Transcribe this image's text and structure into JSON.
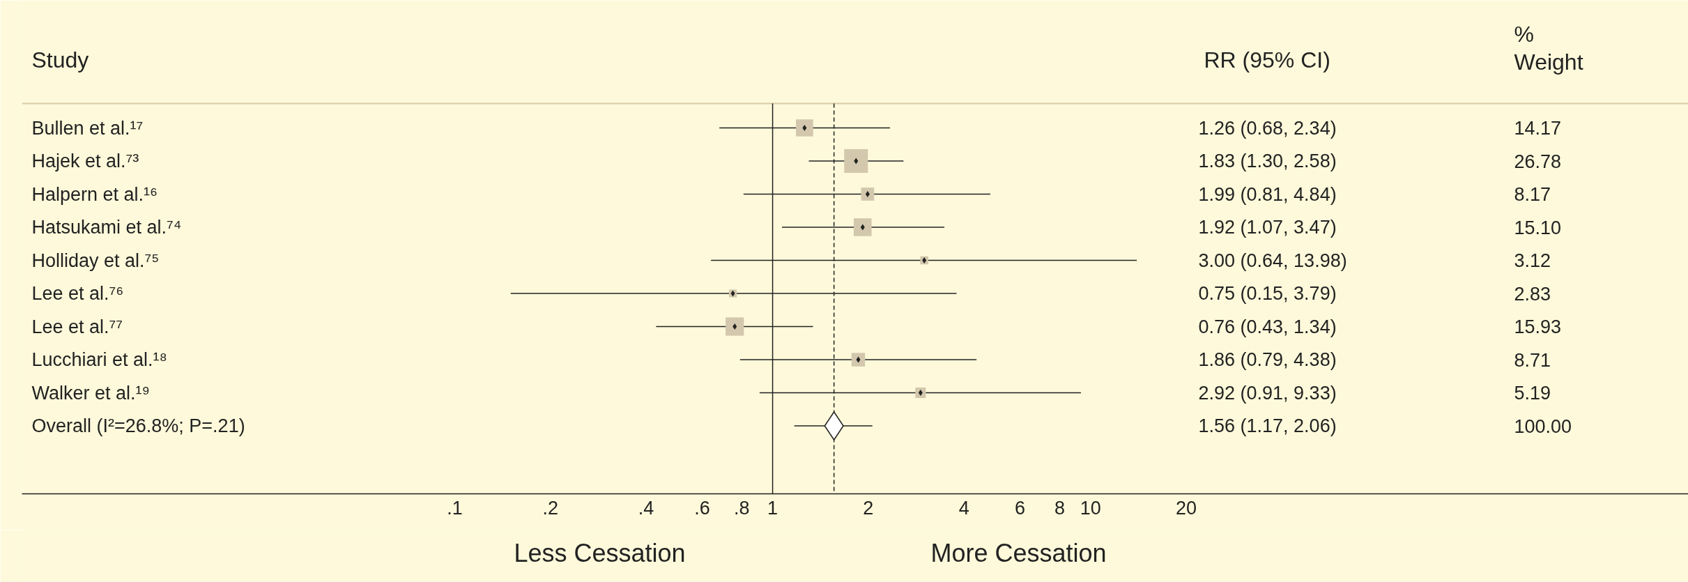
{
  "chart_data": {
    "type": "scatter",
    "orientation": "horizontal",
    "categories": [
      "Bullen et al.¹⁷",
      "Hajek et al.⁷³",
      "Halpern et al.¹⁶",
      "Hatsukami et al.⁷⁴",
      "Holliday et al.⁷⁵",
      "Lee et al.⁷⁶",
      "Lee et al.⁷⁷",
      "Lucchiari et al.¹⁸",
      "Walker et al.¹⁹",
      "Overall  (I²=26.8%; P=.21)"
    ],
    "series": [
      {
        "type": "bubble",
        "marker": "square",
        "color": "#d3c8ad",
        "values": [
          1.26,
          1.83,
          1.99,
          1.92,
          3.0,
          0.75,
          0.76,
          1.86,
          2.92,
          null
        ],
        "errors": [
          [
            0.68,
            2.34
          ],
          [
            1.3,
            2.58
          ],
          [
            0.81,
            4.84
          ],
          [
            1.07,
            3.47
          ],
          [
            0.64,
            13.98
          ],
          [
            0.15,
            3.79
          ],
          [
            0.43,
            1.34
          ],
          [
            0.79,
            4.38
          ],
          [
            0.91,
            9.33
          ],
          null
        ],
        "sizes": [
          0.529,
          1,
          0.305,
          0.564,
          0.117,
          0.106,
          0.595,
          0.325,
          0.194,
          null
        ]
      },
      {
        "type": "scatter",
        "marker": "diamond",
        "color": "#ffffff",
        "values": [
          null,
          null,
          null,
          null,
          null,
          null,
          null,
          null,
          null,
          1.56
        ],
        "errors": [
          null,
          null,
          null,
          null,
          null,
          null,
          null,
          null,
          null,
          [
            1.17,
            2.06
          ]
        ]
      }
    ],
    "value_labels": [
      "1.26 (0.68, 2.34)",
      "1.83 (1.30, 2.58)",
      "1.99 (0.81, 4.84)",
      "1.92 (1.07, 3.47)",
      "3.00 (0.64, 13.98)",
      "0.75 (0.15, 3.79)",
      "0.76 (0.43, 1.34)",
      "1.86 (0.79, 4.38)",
      "2.92 (0.91, 9.33)",
      "1.56 (1.17, 2.06)"
    ],
    "log": "x",
    "xlim": [
      0.00435,
      760
    ],
    "xticks": [
      {
        "value": 0.1,
        "label": ".1"
      },
      {
        "value": 0.2,
        "label": ".2"
      },
      {
        "value": 0.4,
        "label": ".4"
      },
      {
        "value": 0.6,
        "label": ".6"
      },
      {
        "value": 0.8,
        "label": ".8"
      },
      1,
      2,
      4,
      6,
      8,
      10,
      20
    ],
    "ref_lines": [
      {
        "axis": "x",
        "value": 1,
        "line_style": "solid"
      },
      {
        "axis": "x",
        "value": 1.56,
        "line_style": "dashed"
      }
    ],
    "annotations": [
      "Study",
      "RR (95% CI)",
      "%\nWeight",
      "Less Cessation",
      "More Cessation",
      "14.17",
      "26.78",
      "8.17",
      "15.10",
      "3.12",
      "2.83",
      "15.93",
      "8.71",
      "5.19",
      "100.00"
    ],
    "grid": false
  }
}
